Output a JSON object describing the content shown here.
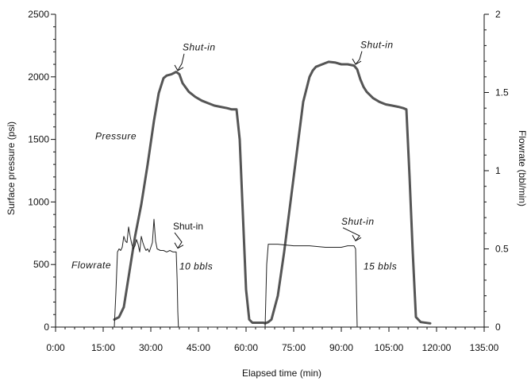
{
  "chart_data": {
    "type": "line",
    "xlabel": "Elapsed time (min)",
    "ylabel": "Surface pressure (psi)",
    "y2label": "Flowrate (bbl/min)",
    "xlim": [
      0,
      135
    ],
    "ylim": [
      0,
      2500
    ],
    "y2lim": [
      0,
      2
    ],
    "x_ticks": [
      0,
      15,
      30,
      45,
      60,
      75,
      90,
      105,
      120,
      135
    ],
    "x_tick_labels": [
      "0:00",
      "15:00",
      "30:00",
      "45:00",
      "60:00",
      "75:00",
      "90:00",
      "105:00",
      "120:00",
      "135:00"
    ],
    "y_ticks": [
      0,
      500,
      1000,
      1500,
      2000,
      2500
    ],
    "y_tick_labels": [
      "0",
      "500",
      "1000",
      "1500",
      "2000",
      "2500"
    ],
    "y2_ticks": [
      0,
      0.5,
      1,
      1.5,
      2
    ],
    "y2_tick_labels": [
      "0",
      "0.5",
      "1",
      "1.5",
      "2"
    ],
    "grid": false,
    "series": [
      {
        "name": "Pressure",
        "axis": "left",
        "color": "#555555",
        "x": [
          18.5,
          20,
          21.5,
          23,
          25,
          27,
          29,
          31,
          32.5,
          34,
          35,
          36.5,
          38,
          39,
          40,
          42,
          44,
          46,
          48,
          50,
          52,
          54,
          55.5,
          57,
          58,
          59,
          60,
          61,
          62,
          64,
          65.5,
          66,
          67,
          68,
          70,
          72,
          74,
          76,
          78,
          80,
          81,
          82,
          84,
          86,
          88,
          90,
          92,
          94,
          95,
          96,
          97,
          98,
          100,
          102,
          104,
          106,
          108,
          109.5,
          110.5,
          111.5,
          112.5,
          113.5,
          115,
          118
        ],
        "y": [
          60,
          80,
          160,
          400,
          720,
          980,
          1300,
          1650,
          1870,
          1990,
          2010,
          2020,
          2040,
          2020,
          1950,
          1880,
          1840,
          1810,
          1790,
          1770,
          1760,
          1750,
          1740,
          1740,
          1500,
          900,
          300,
          60,
          35,
          35,
          35,
          30,
          40,
          60,
          250,
          600,
          1000,
          1400,
          1800,
          2000,
          2050,
          2080,
          2100,
          2120,
          2115,
          2100,
          2100,
          2090,
          2060,
          1980,
          1920,
          1880,
          1830,
          1800,
          1780,
          1770,
          1760,
          1750,
          1740,
          1200,
          600,
          80,
          40,
          30
        ]
      },
      {
        "name": "Flowrate",
        "axis": "right",
        "color": "#222222",
        "x": [
          18.5,
          19,
          19.5,
          20,
          20.5,
          21,
          21.5,
          22,
          22.5,
          23,
          23.5,
          24,
          24.5,
          25,
          25.5,
          26,
          26.5,
          27,
          27.5,
          28,
          28.5,
          29,
          29.5,
          30,
          30.5,
          31,
          31.5,
          32,
          33,
          34,
          35,
          36,
          37,
          38,
          38.3,
          38.5,
          38.7,
          66,
          66.5,
          67,
          70,
          75,
          80,
          85,
          90,
          92,
          94,
          94.5,
          94.8,
          95
        ],
        "y": [
          0,
          0.22,
          0.48,
          0.5,
          0.49,
          0.51,
          0.58,
          0.55,
          0.54,
          0.64,
          0.58,
          0.53,
          0.5,
          0.52,
          0.56,
          0.53,
          0.48,
          0.58,
          0.54,
          0.51,
          0.49,
          0.5,
          0.48,
          0.51,
          0.54,
          0.69,
          0.55,
          0.5,
          0.49,
          0.49,
          0.48,
          0.49,
          0.48,
          0.48,
          0.3,
          0.1,
          0,
          0,
          0.4,
          0.53,
          0.53,
          0.52,
          0.52,
          0.51,
          0.51,
          0.52,
          0.52,
          0.5,
          0.2,
          0
        ]
      }
    ],
    "annotations": [
      {
        "text": "Shut-in",
        "x": 40,
        "y": 2210,
        "axis": "left",
        "italic": true,
        "arrow_to": [
          38.5,
          2050
        ]
      },
      {
        "text": "Shut-in",
        "x": 96,
        "y": 2230,
        "axis": "left",
        "italic": true,
        "arrow_to": [
          94.5,
          2100
        ]
      },
      {
        "text": "Pressure",
        "x": 12.5,
        "y": 1500,
        "axis": "left",
        "italic": true
      },
      {
        "text": "Flowrate",
        "x": 5,
        "y": 470,
        "axis": "left",
        "italic": true
      },
      {
        "text": "Shut-in",
        "x": 37,
        "y": 780,
        "axis": "left",
        "italic": false,
        "arrow_to": [
          38.5,
          630
        ]
      },
      {
        "text": "10 bbls",
        "x": 39,
        "y": 460,
        "axis": "left",
        "italic": true
      },
      {
        "text": "Shut-in",
        "x": 90,
        "y": 820,
        "axis": "left",
        "italic": true,
        "arrow_to": [
          94.5,
          690
        ]
      },
      {
        "text": "15 bbls",
        "x": 97,
        "y": 460,
        "axis": "left",
        "italic": true
      }
    ]
  }
}
